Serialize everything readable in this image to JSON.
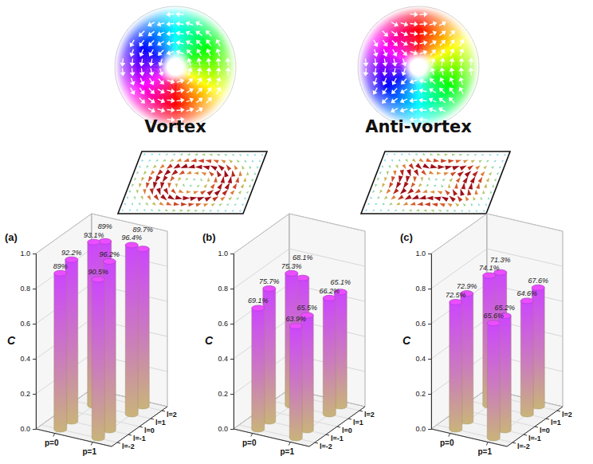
{
  "illustrations": {
    "labels": [
      "Vortex",
      "Anti-vortex"
    ]
  },
  "chart_data": [
    {
      "type": "bar3d",
      "title": "(a)",
      "zlabel": "C",
      "color": "#cc44ff",
      "x": [
        0,
        0,
        0,
        0,
        1,
        1,
        1,
        1
      ],
      "y": [
        -2,
        -1,
        1,
        2,
        -2,
        -1,
        1,
        2
      ],
      "values": [
        0.89,
        0.922,
        0.931,
        0.89,
        0.905,
        0.962,
        0.964,
        0.897
      ],
      "value_labels": [
        "89%",
        "92.2%",
        "93.1%",
        "89%",
        "90.5%",
        "96.2%",
        "96.4%",
        "89.7%"
      ],
      "data_labels": true,
      "grid": true,
      "xlim": [
        -0.5,
        1.5
      ],
      "ylim": [
        -2.5,
        2.5
      ],
      "zlim": [
        0,
        1
      ],
      "xticks": [
        {
          "value": 0,
          "label": "p=0"
        },
        {
          "value": 1,
          "label": "p=1"
        }
      ],
      "yticks": [
        {
          "value": -2,
          "label": "l=-2"
        },
        {
          "value": -1,
          "label": "l=-1"
        },
        {
          "value": 0,
          "label": "l=0"
        },
        {
          "value": 1,
          "label": "l=1"
        },
        {
          "value": 2,
          "label": "l=2"
        }
      ],
      "zticks": [
        {
          "value": 0,
          "label": "0.0"
        },
        {
          "value": 0.2,
          "label": "0.2"
        },
        {
          "value": 0.4,
          "label": "0.4"
        },
        {
          "value": 0.6,
          "label": "0.6"
        },
        {
          "value": 0.8,
          "label": "0.8"
        },
        {
          "value": 1,
          "label": "1.0"
        }
      ]
    },
    {
      "type": "bar3d",
      "title": "(b)",
      "zlabel": "C",
      "color": "#cc44ff",
      "x": [
        0,
        0,
        0,
        0,
        1,
        1,
        1,
        1
      ],
      "y": [
        -2,
        -1,
        1,
        2,
        -2,
        -1,
        1,
        2
      ],
      "values": [
        0.691,
        0.757,
        0.753,
        0.681,
        0.639,
        0.655,
        0.662,
        0.651
      ],
      "value_labels": [
        "69.1%",
        "75.7%",
        "75.3%",
        "68.1%",
        "63.9%",
        "65.5%",
        "66.2%",
        "65.1%"
      ],
      "data_labels": true,
      "grid": true,
      "xlim": [
        -0.5,
        1.5
      ],
      "ylim": [
        -2.5,
        2.5
      ],
      "zlim": [
        0,
        1
      ],
      "xticks": [
        {
          "value": 0,
          "label": "p=0"
        },
        {
          "value": 1,
          "label": "p=1"
        }
      ],
      "yticks": [
        {
          "value": -2,
          "label": "l=-2"
        },
        {
          "value": -1,
          "label": "l=-1"
        },
        {
          "value": 0,
          "label": "l=0"
        },
        {
          "value": 1,
          "label": "l=1"
        },
        {
          "value": 2,
          "label": "l=2"
        }
      ],
      "zticks": [
        {
          "value": 0,
          "label": "0.0"
        },
        {
          "value": 0.2,
          "label": "0.2"
        },
        {
          "value": 0.4,
          "label": "0.4"
        },
        {
          "value": 0.6,
          "label": "0.6"
        },
        {
          "value": 0.8,
          "label": "0.8"
        },
        {
          "value": 1,
          "label": "1.0"
        }
      ]
    },
    {
      "type": "bar3d",
      "title": "(c)",
      "zlabel": "C",
      "color": "#cc44ff",
      "x": [
        0,
        0,
        0,
        0,
        1,
        1,
        1,
        1
      ],
      "y": [
        -2,
        -1,
        1,
        2,
        -2,
        -1,
        1,
        2
      ],
      "values": [
        0.725,
        0.729,
        0.741,
        0.713,
        0.656,
        0.652,
        0.646,
        0.676
      ],
      "value_labels": [
        "72.5%",
        "72.9%",
        "74.1%",
        "71.3%",
        "65.6%",
        "65.2%",
        "64.6%",
        "67.6%"
      ],
      "data_labels": true,
      "grid": true,
      "xlim": [
        -0.5,
        1.5
      ],
      "ylim": [
        -2.5,
        2.5
      ],
      "zlim": [
        0,
        1
      ],
      "xticks": [
        {
          "value": 0,
          "label": "p=0"
        },
        {
          "value": 1,
          "label": "p=1"
        }
      ],
      "yticks": [
        {
          "value": -2,
          "label": "l=-2"
        },
        {
          "value": -1,
          "label": "l=-1"
        },
        {
          "value": 0,
          "label": "l=0"
        },
        {
          "value": 1,
          "label": "l=1"
        },
        {
          "value": 2,
          "label": "l=2"
        }
      ],
      "zticks": [
        {
          "value": 0,
          "label": "0.0"
        },
        {
          "value": 0.2,
          "label": "0.2"
        },
        {
          "value": 0.4,
          "label": "0.4"
        },
        {
          "value": 0.6,
          "label": "0.6"
        },
        {
          "value": 0.8,
          "label": "0.8"
        },
        {
          "value": 1,
          "label": "1.0"
        }
      ]
    }
  ]
}
